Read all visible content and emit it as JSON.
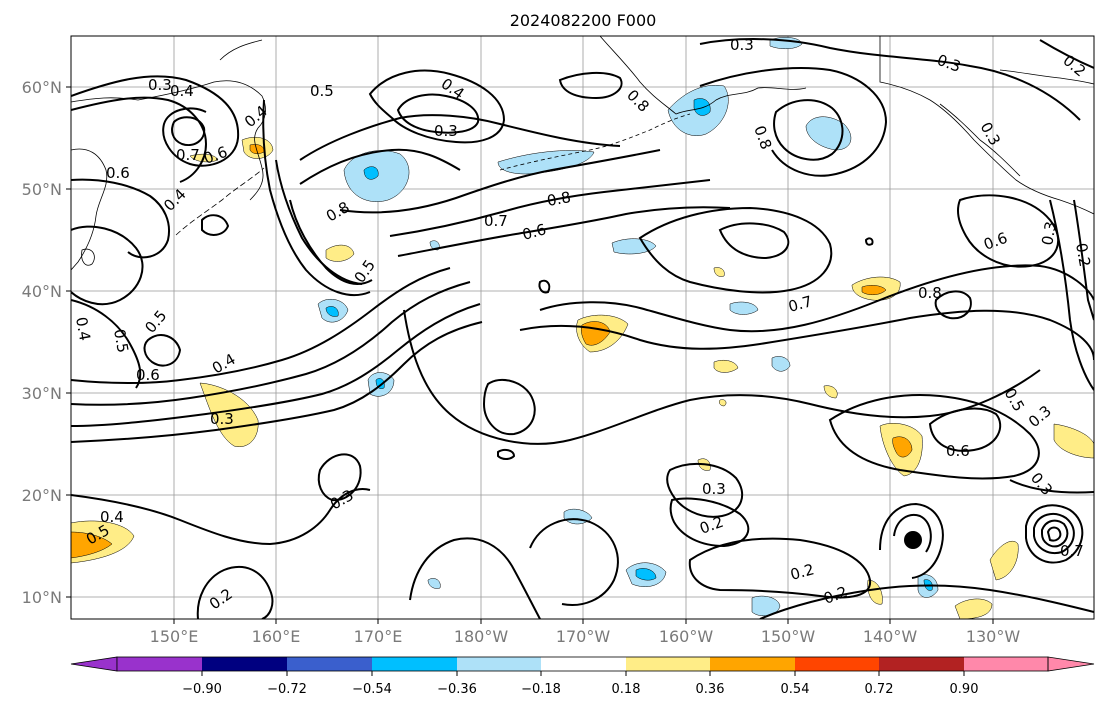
{
  "title": "2024082200 F000",
  "map": {
    "lon_labels": [
      "150°E",
      "160°E",
      "170°E",
      "180°W",
      "170°W",
      "160°W",
      "150°W",
      "140°W",
      "130°W"
    ],
    "lat_labels": [
      "60°N",
      "50°N",
      "40°N",
      "30°N",
      "20°N",
      "10°N"
    ],
    "contour_labels": [
      "0.3",
      "0.4",
      "0.5",
      "0.4",
      "0.3",
      "0.8",
      "0.3",
      "0.3",
      "0.2",
      "0.3",
      "0.4",
      "0.6",
      "0.7",
      "0.6",
      "0.4",
      "0.8",
      "0.8",
      "0.7",
      "0.6",
      "0.8",
      "0.6",
      "0.8",
      "0.7",
      "0.3",
      "0.2",
      "0.5",
      "0.5",
      "0.4",
      "0.6",
      "0.3",
      "0.5",
      "0.4",
      "0.6",
      "0.3",
      "0.3",
      "0.3",
      "0.2",
      "0.2",
      "0.2",
      "0.5",
      "0.3",
      "0.2",
      "0.7",
      "0.5",
      "0.4"
    ],
    "shading_colors": {
      "positive_light": "#ffed87",
      "positive_mid": "#ffa500",
      "negative_light": "#aee1f8",
      "negative_mid": "#00bfff"
    },
    "marker": "storm-center-dot"
  },
  "colorbar": {
    "ticks": [
      "−0.90",
      "−0.72",
      "−0.54",
      "−0.36",
      "−0.18",
      "0.18",
      "0.36",
      "0.54",
      "0.72",
      "0.90"
    ],
    "colors": [
      "#9932cc",
      "#000080",
      "#3a5fcd",
      "#00bfff",
      "#aee1f8",
      "#ffffff",
      "#ffed87",
      "#ffa500",
      "#ff4500",
      "#b22222",
      "#ff88aa"
    ]
  }
}
